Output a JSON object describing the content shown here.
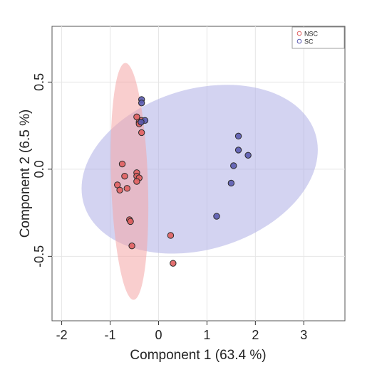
{
  "chart_data": {
    "type": "scatter",
    "title": "",
    "xlabel": "Component 1 (63.4 %)",
    "ylabel": "Component 2 (6.5 %)",
    "xlim": [
      -2.2,
      3.85
    ],
    "ylim": [
      -0.87,
      0.82
    ],
    "xticks": [
      -2,
      -1,
      0,
      1,
      2,
      3
    ],
    "yticks": [
      -0.5,
      0.0,
      0.5
    ],
    "xtick_labels": [
      "-2",
      "-1",
      "0",
      "1",
      "2",
      "3"
    ],
    "ytick_labels": [
      "-0.5",
      "0.0",
      "0.5"
    ],
    "grid": true,
    "legend_position": "top-right",
    "series": [
      {
        "name": "NSC",
        "color": "#e06060",
        "ellipse_fill": "#f4a6a6",
        "ellipse": {
          "cx": -0.6,
          "cy": -0.07,
          "rx": 0.38,
          "ry": 0.68,
          "angle_deg": -2
        },
        "points": [
          [
            -0.45,
            0.3
          ],
          [
            -0.35,
            0.28
          ],
          [
            -0.4,
            0.27
          ],
          [
            -0.4,
            0.26
          ],
          [
            -0.35,
            0.21
          ],
          [
            -0.75,
            0.03
          ],
          [
            -0.45,
            -0.02
          ],
          [
            -0.45,
            -0.04
          ],
          [
            -0.7,
            -0.04
          ],
          [
            -0.4,
            -0.05
          ],
          [
            -0.45,
            -0.07
          ],
          [
            -0.85,
            -0.09
          ],
          [
            -0.8,
            -0.12
          ],
          [
            -0.65,
            -0.11
          ],
          [
            -0.6,
            -0.29
          ],
          [
            -0.58,
            -0.3
          ],
          [
            -0.55,
            -0.44
          ],
          [
            0.25,
            -0.38
          ],
          [
            0.3,
            -0.54
          ]
        ]
      },
      {
        "name": "SC",
        "color": "#5b5bb0",
        "ellipse_fill": "#aeaee6",
        "ellipse": {
          "cx": 0.85,
          "cy": 0.0,
          "rx": 2.5,
          "ry": 0.46,
          "angle_deg": -17
        },
        "points": [
          [
            -0.35,
            0.4
          ],
          [
            -0.35,
            0.38
          ],
          [
            -0.28,
            0.28
          ],
          [
            -0.36,
            0.27
          ],
          [
            1.65,
            0.19
          ],
          [
            1.65,
            0.11
          ],
          [
            1.85,
            0.08
          ],
          [
            1.55,
            0.02
          ],
          [
            1.5,
            -0.08
          ],
          [
            1.2,
            -0.27
          ]
        ]
      }
    ]
  }
}
